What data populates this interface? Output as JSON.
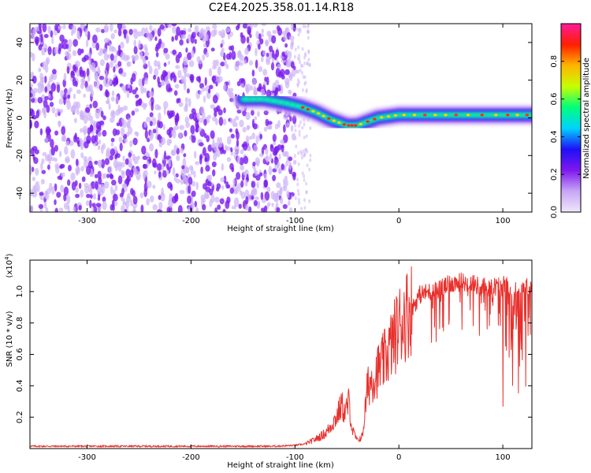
{
  "figure_title": "C2E4.2025.358.01.14.R18",
  "colors": {
    "snr_line": "#e8302c",
    "axis": "#000000",
    "dot_purple": "#7a1cf0",
    "dot_light": "#cdb4f7"
  },
  "chart_data": [
    {
      "type": "heatmap",
      "title": "C2E4.2025.358.01.14.R18",
      "xlabel": "Height of straight line (km)",
      "ylabel": "Frequency (Hz)",
      "xlim": [
        -355,
        128
      ],
      "ylim": [
        -50,
        50
      ],
      "xticks": [
        -300,
        -200,
        -100,
        0,
        100
      ],
      "yticks": [
        -40,
        -20,
        0,
        20,
        40
      ],
      "noise_region_x": [
        -355,
        -100
      ],
      "signal_track": [
        {
          "x": -150,
          "y": 10
        },
        {
          "x": -130,
          "y": 10
        },
        {
          "x": -110,
          "y": 8
        },
        {
          "x": -95,
          "y": 6
        },
        {
          "x": -80,
          "y": 3
        },
        {
          "x": -65,
          "y": -1
        },
        {
          "x": -50,
          "y": -4
        },
        {
          "x": -40,
          "y": -4
        },
        {
          "x": -20,
          "y": 0
        },
        {
          "x": 0,
          "y": 1.5
        },
        {
          "x": 30,
          "y": 1.5
        },
        {
          "x": 60,
          "y": 1.5
        },
        {
          "x": 100,
          "y": 1.5
        },
        {
          "x": 128,
          "y": 1.5
        }
      ],
      "colorbar": {
        "label": "Normalized spectral amplitude",
        "range": [
          0,
          1
        ],
        "ticks": [
          0.0,
          0.2,
          0.4,
          0.6,
          0.8
        ],
        "tick_labels": [
          "0.0",
          "0.2",
          "0.4",
          "0.6",
          "0.8"
        ],
        "stops": [
          "#f0e6fb",
          "#c6a6f5",
          "#7f17ee",
          "#1e10f7",
          "#00d2ff",
          "#00ff7a",
          "#c8ff00",
          "#ffb400",
          "#ff1e00",
          "#ff1a9a"
        ]
      }
    },
    {
      "type": "line",
      "xlabel": "Height of straight line (km)",
      "ylabel": "SNR (10 * v/v)",
      "y_scale_label": "(x10",
      "y_scale_exp": "4",
      "xlim": [
        -355,
        128
      ],
      "ylim": [
        0,
        1.2
      ],
      "xticks": [
        -300,
        -200,
        -100,
        0,
        100
      ],
      "yticks": [
        0.2,
        0.4,
        0.6,
        0.8,
        1.0
      ],
      "y_tick_labels": [
        "0.2",
        "0.4",
        "0.6",
        "0.8",
        "1.0"
      ],
      "series": [
        {
          "name": "SNR",
          "x": [
            -355,
            -300,
            -250,
            -200,
            -150,
            -120,
            -100,
            -90,
            -80,
            -70,
            -60,
            -55,
            -52,
            -48,
            -45,
            -40,
            -35,
            -30,
            -25,
            -20,
            -15,
            -10,
            -5,
            0,
            5,
            10,
            15,
            20,
            30,
            40,
            50,
            60,
            70,
            80,
            90,
            100,
            110,
            120,
            128
          ],
          "y": [
            0.015,
            0.015,
            0.015,
            0.015,
            0.015,
            0.015,
            0.02,
            0.03,
            0.06,
            0.1,
            0.2,
            0.28,
            0.22,
            0.3,
            0.12,
            0.05,
            0.08,
            0.4,
            0.45,
            0.5,
            0.55,
            0.62,
            0.7,
            0.78,
            0.84,
            0.88,
            0.92,
            0.98,
            1.0,
            1.02,
            1.05,
            1.06,
            1.05,
            1.03,
            1.03,
            1.04,
            1.03,
            1.03,
            1.03
          ]
        }
      ]
    }
  ]
}
